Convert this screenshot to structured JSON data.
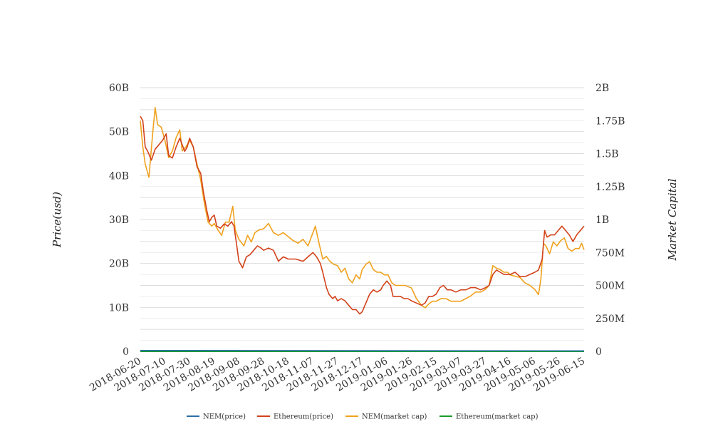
{
  "chart_data": {
    "type": "line",
    "ylabel_left": "Price(usd)",
    "ylabel_right": "Market Capital",
    "y_left_ticks": [
      "0",
      "10B",
      "20B",
      "30B",
      "40B",
      "50B",
      "60B"
    ],
    "y_left_lim": [
      0,
      60000000000
    ],
    "y_right_ticks": [
      "0",
      "250M",
      "500M",
      "750M",
      "1B",
      "1.25B",
      "1.5B",
      "1.75B",
      "2B"
    ],
    "y_right_lim": [
      0,
      2000000000
    ],
    "x_tick_labels": [
      "2018-06-20",
      "2018-07-10",
      "2018-07-30",
      "2018-08-19",
      "2018-09-08",
      "2018-09-28",
      "2018-10-18",
      "2018-11-07",
      "2018-11-27",
      "2018-12-17",
      "2019-01-06",
      "2019-01-26",
      "2019-02-15",
      "2019-03-07",
      "2019-03-27",
      "2019-04-16",
      "2019-05-06",
      "2019-05-26",
      "2019-06-15"
    ],
    "x_range": [
      "2018-06-20",
      "2019-06-15"
    ],
    "grid": true,
    "legend_position": "bottom",
    "colors": {
      "nem_price": "#2a6fa8",
      "eth_price": "#d2421a",
      "nem_mcap": "#f0a11d",
      "eth_mcap": "#1a9c2a"
    },
    "series": [
      {
        "name": "NEM(price)",
        "axis": "left",
        "color": "#2a6fa8",
        "points": [
          [
            "2018-06-20",
            0.2
          ],
          [
            "2019-06-15",
            0.12
          ]
        ]
      },
      {
        "name": "Ethereum(price)",
        "axis": "left",
        "color": "#d2421a",
        "points": [
          [
            "2018-06-20",
            53.5
          ],
          [
            "2018-06-22",
            52.5
          ],
          [
            "2018-06-24",
            46.5
          ],
          [
            "2018-06-26",
            45.5
          ],
          [
            "2018-06-29",
            43.5
          ],
          [
            "2018-07-02",
            46.0
          ],
          [
            "2018-07-05",
            47.0
          ],
          [
            "2018-07-08",
            48.0
          ],
          [
            "2018-07-11",
            49.5
          ],
          [
            "2018-07-13",
            44.5
          ],
          [
            "2018-07-16",
            44.0
          ],
          [
            "2018-07-19",
            46.5
          ],
          [
            "2018-07-22",
            48.5
          ],
          [
            "2018-07-24",
            47.0
          ],
          [
            "2018-07-26",
            45.5
          ],
          [
            "2018-07-28",
            46.5
          ],
          [
            "2018-07-30",
            48.5
          ],
          [
            "2018-08-02",
            46.5
          ],
          [
            "2018-08-05",
            42.0
          ],
          [
            "2018-08-08",
            40.5
          ],
          [
            "2018-08-10",
            36.5
          ],
          [
            "2018-08-13",
            32.0
          ],
          [
            "2018-08-15",
            29.5
          ],
          [
            "2018-08-17",
            30.5
          ],
          [
            "2018-08-19",
            31.0
          ],
          [
            "2018-08-21",
            28.5
          ],
          [
            "2018-08-24",
            28.0
          ],
          [
            "2018-08-27",
            29.0
          ],
          [
            "2018-08-30",
            28.5
          ],
          [
            "2018-09-02",
            29.5
          ],
          [
            "2018-09-04",
            28.5
          ],
          [
            "2018-09-06",
            24.5
          ],
          [
            "2018-09-08",
            20.5
          ],
          [
            "2018-09-11",
            19.0
          ],
          [
            "2018-09-14",
            21.5
          ],
          [
            "2018-09-17",
            22.0
          ],
          [
            "2018-09-20",
            23.0
          ],
          [
            "2018-09-23",
            24.0
          ],
          [
            "2018-09-26",
            23.5
          ],
          [
            "2018-09-28",
            23.0
          ],
          [
            "2018-10-02",
            23.5
          ],
          [
            "2018-10-06",
            23.0
          ],
          [
            "2018-10-10",
            20.5
          ],
          [
            "2018-10-14",
            21.5
          ],
          [
            "2018-10-18",
            21.0
          ],
          [
            "2018-10-24",
            21.0
          ],
          [
            "2018-10-30",
            20.5
          ],
          [
            "2018-11-03",
            21.5
          ],
          [
            "2018-11-07",
            22.5
          ],
          [
            "2018-11-10",
            21.5
          ],
          [
            "2018-11-13",
            20.0
          ],
          [
            "2018-11-15",
            18.0
          ],
          [
            "2018-11-18",
            14.5
          ],
          [
            "2018-11-20",
            13.0
          ],
          [
            "2018-11-23",
            12.0
          ],
          [
            "2018-11-25",
            12.5
          ],
          [
            "2018-11-27",
            11.5
          ],
          [
            "2018-11-30",
            12.0
          ],
          [
            "2018-12-03",
            11.5
          ],
          [
            "2018-12-06",
            10.5
          ],
          [
            "2018-12-09",
            9.5
          ],
          [
            "2018-12-12",
            9.5
          ],
          [
            "2018-12-15",
            8.5
          ],
          [
            "2018-12-17",
            9.0
          ],
          [
            "2018-12-20",
            11.0
          ],
          [
            "2018-12-23",
            13.0
          ],
          [
            "2018-12-26",
            14.0
          ],
          [
            "2018-12-29",
            13.5
          ],
          [
            "2019-01-01",
            14.0
          ],
          [
            "2019-01-03",
            15.0
          ],
          [
            "2019-01-06",
            16.0
          ],
          [
            "2019-01-09",
            15.0
          ],
          [
            "2019-01-11",
            12.5
          ],
          [
            "2019-01-14",
            12.5
          ],
          [
            "2019-01-17",
            12.5
          ],
          [
            "2019-01-20",
            12.0
          ],
          [
            "2019-01-23",
            12.0
          ],
          [
            "2019-01-26",
            11.5
          ],
          [
            "2019-01-30",
            11.0
          ],
          [
            "2019-02-03",
            10.5
          ],
          [
            "2019-02-06",
            11.0
          ],
          [
            "2019-02-09",
            12.5
          ],
          [
            "2019-02-12",
            12.5
          ],
          [
            "2019-02-15",
            13.0
          ],
          [
            "2019-02-18",
            14.5
          ],
          [
            "2019-02-21",
            15.0
          ],
          [
            "2019-02-24",
            14.0
          ],
          [
            "2019-02-27",
            14.0
          ],
          [
            "2019-03-03",
            13.5
          ],
          [
            "2019-03-07",
            14.0
          ],
          [
            "2019-03-11",
            14.0
          ],
          [
            "2019-03-15",
            14.5
          ],
          [
            "2019-03-19",
            14.5
          ],
          [
            "2019-03-23",
            14.0
          ],
          [
            "2019-03-27",
            14.5
          ],
          [
            "2019-03-30",
            15.0
          ],
          [
            "2019-04-02",
            17.5
          ],
          [
            "2019-04-05",
            18.5
          ],
          [
            "2019-04-08",
            18.0
          ],
          [
            "2019-04-11",
            17.5
          ],
          [
            "2019-04-14",
            17.5
          ],
          [
            "2019-04-16",
            17.5
          ],
          [
            "2019-04-20",
            18.0
          ],
          [
            "2019-04-24",
            17.0
          ],
          [
            "2019-04-28",
            17.0
          ],
          [
            "2019-05-02",
            17.5
          ],
          [
            "2019-05-06",
            18.0
          ],
          [
            "2019-05-09",
            18.5
          ],
          [
            "2019-05-12",
            21.0
          ],
          [
            "2019-05-14",
            27.5
          ],
          [
            "2019-05-16",
            26.0
          ],
          [
            "2019-05-19",
            26.5
          ],
          [
            "2019-05-22",
            26.5
          ],
          [
            "2019-05-25",
            27.5
          ],
          [
            "2019-05-28",
            28.5
          ],
          [
            "2019-05-31",
            27.5
          ],
          [
            "2019-06-03",
            26.5
          ],
          [
            "2019-06-06",
            25.0
          ],
          [
            "2019-06-09",
            26.5
          ],
          [
            "2019-06-12",
            27.5
          ],
          [
            "2019-06-15",
            28.5
          ]
        ]
      },
      {
        "name": "NEM(market cap)",
        "axis": "right",
        "color": "#f0a11d",
        "points": [
          [
            "2018-06-20",
            1.75
          ],
          [
            "2018-06-22",
            1.55
          ],
          [
            "2018-06-24",
            1.42
          ],
          [
            "2018-06-27",
            1.32
          ],
          [
            "2018-06-30",
            1.65
          ],
          [
            "2018-07-02",
            1.85
          ],
          [
            "2018-07-04",
            1.72
          ],
          [
            "2018-07-07",
            1.7
          ],
          [
            "2018-07-10",
            1.6
          ],
          [
            "2018-07-13",
            1.47
          ],
          [
            "2018-07-16",
            1.52
          ],
          [
            "2018-07-19",
            1.62
          ],
          [
            "2018-07-22",
            1.68
          ],
          [
            "2018-07-24",
            1.52
          ],
          [
            "2018-07-27",
            1.55
          ],
          [
            "2018-07-30",
            1.6
          ],
          [
            "2018-08-02",
            1.55
          ],
          [
            "2018-08-05",
            1.42
          ],
          [
            "2018-08-08",
            1.3
          ],
          [
            "2018-08-11",
            1.12
          ],
          [
            "2018-08-14",
            0.98
          ],
          [
            "2018-08-17",
            0.95
          ],
          [
            "2018-08-19",
            0.97
          ],
          [
            "2018-08-22",
            0.92
          ],
          [
            "2018-08-25",
            0.88
          ],
          [
            "2018-08-28",
            0.98
          ],
          [
            "2018-08-31",
            0.98
          ],
          [
            "2018-09-03",
            1.1
          ],
          [
            "2018-09-05",
            0.92
          ],
          [
            "2018-09-08",
            0.85
          ],
          [
            "2018-09-12",
            0.8
          ],
          [
            "2018-09-15",
            0.88
          ],
          [
            "2018-09-18",
            0.83
          ],
          [
            "2018-09-21",
            0.9
          ],
          [
            "2018-09-24",
            0.92
          ],
          [
            "2018-09-28",
            0.93
          ],
          [
            "2018-10-02",
            0.97
          ],
          [
            "2018-10-06",
            0.9
          ],
          [
            "2018-10-10",
            0.88
          ],
          [
            "2018-10-14",
            0.9
          ],
          [
            "2018-10-18",
            0.87
          ],
          [
            "2018-10-22",
            0.84
          ],
          [
            "2018-10-26",
            0.82
          ],
          [
            "2018-10-30",
            0.85
          ],
          [
            "2018-11-03",
            0.8
          ],
          [
            "2018-11-07",
            0.9
          ],
          [
            "2018-11-09",
            0.95
          ],
          [
            "2018-11-12",
            0.82
          ],
          [
            "2018-11-15",
            0.7
          ],
          [
            "2018-11-18",
            0.72
          ],
          [
            "2018-11-21",
            0.68
          ],
          [
            "2018-11-24",
            0.66
          ],
          [
            "2018-11-27",
            0.65
          ],
          [
            "2018-11-30",
            0.6
          ],
          [
            "2018-12-03",
            0.63
          ],
          [
            "2018-12-06",
            0.55
          ],
          [
            "2018-12-09",
            0.52
          ],
          [
            "2018-12-12",
            0.58
          ],
          [
            "2018-12-15",
            0.55
          ],
          [
            "2018-12-17",
            0.62
          ],
          [
            "2018-12-20",
            0.66
          ],
          [
            "2018-12-23",
            0.68
          ],
          [
            "2018-12-26",
            0.62
          ],
          [
            "2018-12-29",
            0.6
          ],
          [
            "2019-01-01",
            0.6
          ],
          [
            "2019-01-04",
            0.58
          ],
          [
            "2019-01-07",
            0.58
          ],
          [
            "2019-01-10",
            0.52
          ],
          [
            "2019-01-13",
            0.5
          ],
          [
            "2019-01-17",
            0.5
          ],
          [
            "2019-01-21",
            0.5
          ],
          [
            "2019-01-26",
            0.48
          ],
          [
            "2019-01-30",
            0.4
          ],
          [
            "2019-02-03",
            0.35
          ],
          [
            "2019-02-06",
            0.33
          ],
          [
            "2019-02-09",
            0.36
          ],
          [
            "2019-02-12",
            0.38
          ],
          [
            "2019-02-15",
            0.38
          ],
          [
            "2019-02-19",
            0.4
          ],
          [
            "2019-02-23",
            0.4
          ],
          [
            "2019-02-27",
            0.38
          ],
          [
            "2019-03-03",
            0.38
          ],
          [
            "2019-03-07",
            0.38
          ],
          [
            "2019-03-11",
            0.4
          ],
          [
            "2019-03-15",
            0.42
          ],
          [
            "2019-03-19",
            0.45
          ],
          [
            "2019-03-23",
            0.45
          ],
          [
            "2019-03-27",
            0.47
          ],
          [
            "2019-03-30",
            0.5
          ],
          [
            "2019-04-02",
            0.65
          ],
          [
            "2019-04-05",
            0.63
          ],
          [
            "2019-04-08",
            0.62
          ],
          [
            "2019-04-11",
            0.6
          ],
          [
            "2019-04-14",
            0.6
          ],
          [
            "2019-04-16",
            0.58
          ],
          [
            "2019-04-20",
            0.57
          ],
          [
            "2019-04-24",
            0.56
          ],
          [
            "2019-04-28",
            0.52
          ],
          [
            "2019-05-02",
            0.5
          ],
          [
            "2019-05-06",
            0.47
          ],
          [
            "2019-05-09",
            0.43
          ],
          [
            "2019-05-11",
            0.55
          ],
          [
            "2019-05-13",
            0.82
          ],
          [
            "2019-05-15",
            0.8
          ],
          [
            "2019-05-18",
            0.74
          ],
          [
            "2019-05-21",
            0.83
          ],
          [
            "2019-05-24",
            0.8
          ],
          [
            "2019-05-27",
            0.84
          ],
          [
            "2019-05-30",
            0.86
          ],
          [
            "2019-06-02",
            0.78
          ],
          [
            "2019-06-05",
            0.76
          ],
          [
            "2019-06-08",
            0.78
          ],
          [
            "2019-06-11",
            0.78
          ],
          [
            "2019-06-13",
            0.82
          ],
          [
            "2019-06-15",
            0.77
          ]
        ]
      },
      {
        "name": "Ethereum(market cap)",
        "axis": "right",
        "color": "#1a9c2a",
        "points": [
          [
            "2018-06-20",
            0
          ],
          [
            "2019-06-15",
            0
          ]
        ]
      }
    ]
  }
}
